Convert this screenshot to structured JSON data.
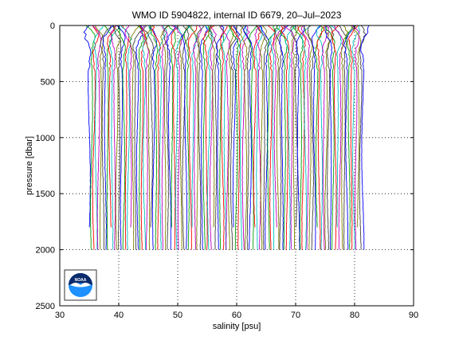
{
  "chart_data": {
    "type": "line",
    "title": "WMO ID 5904822, internal ID 6679, 20–Jul–2023",
    "xlabel": "salinity [psu]",
    "ylabel": "pressure [dbar]",
    "xlim": [
      30,
      90
    ],
    "ylim": [
      0,
      2500
    ],
    "y_reversed": true,
    "grid": true,
    "x_ticks": [
      "30",
      "40",
      "50",
      "60",
      "70",
      "80",
      "90"
    ],
    "y_ticks": [
      "0",
      "500",
      "1000",
      "1500",
      "2000",
      "2500"
    ],
    "profiles": {
      "count": 120,
      "first_offset_psu": 35.0,
      "offset_step_psu": 0.39,
      "deep_salinity_psu": 34.7,
      "max_pressure_dbar": 2000,
      "colors": [
        "#0000ff",
        "#00a000",
        "#ff0000",
        "#00bfbf",
        "#bf00bf",
        "#808000",
        "#404040"
      ]
    },
    "logo": {
      "name": "noaa-logo",
      "text": "NOAA",
      "colors": [
        "#0a2a6b",
        "#1e90ff",
        "#ffffff"
      ]
    }
  }
}
